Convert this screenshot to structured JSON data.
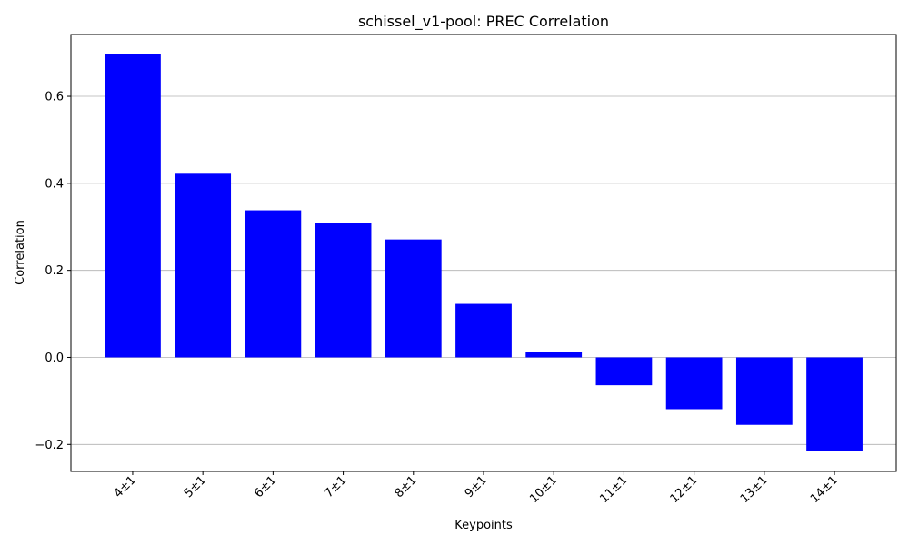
{
  "chart_data": {
    "type": "bar",
    "title": "schissel_v1-pool: PREC Correlation",
    "xlabel": "Keypoints",
    "ylabel": "Correlation",
    "categories": [
      "4±1",
      "5±1",
      "6±1",
      "7±1",
      "8±1",
      "9±1",
      "10±1",
      "11±1",
      "12±1",
      "13±1",
      "14±1"
    ],
    "values": [
      0.698,
      0.422,
      0.338,
      0.308,
      0.271,
      0.123,
      0.013,
      -0.064,
      -0.119,
      -0.155,
      -0.216
    ],
    "ylim": [
      -0.262,
      0.742
    ],
    "yticks": [
      -0.2,
      0.0,
      0.2,
      0.4,
      0.6
    ],
    "ytick_labels": [
      "−0.2",
      "0.0",
      "0.2",
      "0.4",
      "0.6"
    ],
    "bar_color": "#0000ff",
    "grid": "horizontal",
    "legend": "none"
  }
}
